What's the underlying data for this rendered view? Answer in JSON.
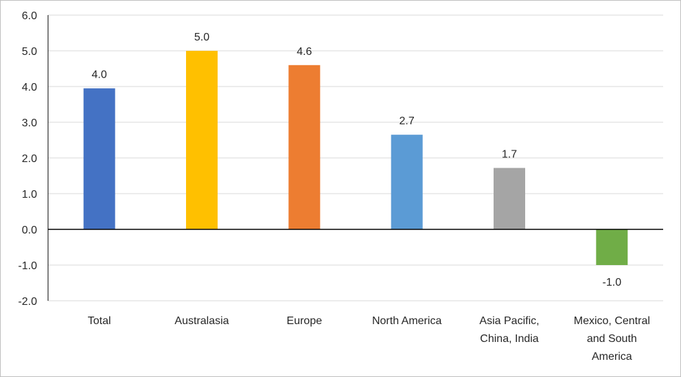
{
  "chart_data": {
    "type": "bar",
    "categories": [
      [
        "Total"
      ],
      [
        "Australasia"
      ],
      [
        "Europe"
      ],
      [
        "North America"
      ],
      [
        "Asia Pacific,",
        "China, India"
      ],
      [
        "Mexico, Central",
        "and South",
        "America"
      ]
    ],
    "values": [
      3.95,
      5.0,
      4.6,
      2.65,
      1.72,
      -1.0
    ],
    "data_labels": [
      "4.0",
      "5.0",
      "4.6",
      "2.7",
      "1.7",
      "-1.0"
    ],
    "colors": [
      "#4472c4",
      "#ffc000",
      "#ed7d31",
      "#5b9bd5",
      "#a5a5a5",
      "#70ad47"
    ],
    "yticks": [
      "6.0",
      "5.0",
      "4.0",
      "3.0",
      "2.0",
      "1.0",
      "0.0",
      "-1.0",
      "-2.0"
    ],
    "ylim": [
      -2,
      6
    ],
    "grid": true,
    "legend": "none",
    "title": "",
    "xlabel": "",
    "ylabel": ""
  }
}
